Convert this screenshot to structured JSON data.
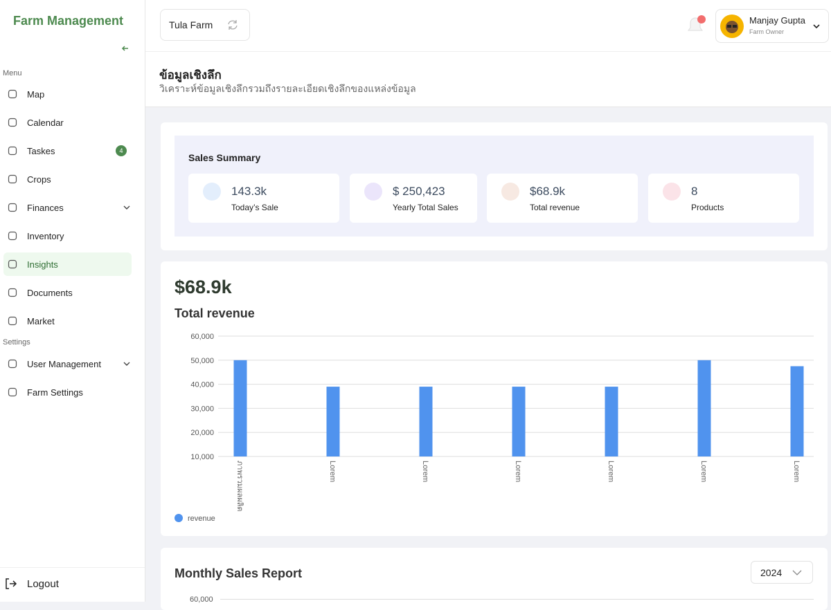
{
  "sidebar": {
    "brand": "Farm Management",
    "menu_label": "Menu",
    "menu": [
      {
        "label": "Map"
      },
      {
        "label": "Calendar"
      },
      {
        "label": "Taskes",
        "badge": "4"
      },
      {
        "label": "Crops"
      },
      {
        "label": "Finances"
      },
      {
        "label": "Inventory"
      },
      {
        "label": "Insights"
      },
      {
        "label": "Documents"
      },
      {
        "label": "Market"
      }
    ],
    "settings_label": "Settings",
    "settings": [
      {
        "label": "User Management"
      },
      {
        "label": "Farm Settings"
      }
    ],
    "logout": "Logout"
  },
  "header": {
    "farm": "Tula Farm",
    "user_name": "Manjay Gupta",
    "user_role": "Farm Owner"
  },
  "page": {
    "title": "ข้อมูลเชิงลึก",
    "subtitle": "วิเคราะห์ข้อมูลเชิงลึกรวมถึงรายละเอียดเชิงลึกของแหล่งข้อมูล"
  },
  "summary": {
    "title": "Sales Summary",
    "cards": [
      {
        "value": "143.3k",
        "label": "Today’s Sale"
      },
      {
        "value": "$ 250,423",
        "label": "Yearly Total Sales"
      },
      {
        "value": "$68.9k",
        "label": "Total revenue"
      },
      {
        "value": "8",
        "label": "Products"
      }
    ]
  },
  "revenue": {
    "headline": "$68.9k",
    "title": "Total revenue"
  },
  "chart_data": {
    "type": "bar",
    "categories": [
      "ภาพรวมผลผลิต",
      "Lorem",
      "Lorem",
      "Lorem",
      "Lorem",
      "Lorem",
      "Lorem"
    ],
    "series": [
      {
        "name": "revenue",
        "color": "#5093ee",
        "values": [
          50000,
          39000,
          39000,
          39000,
          39000,
          50000,
          47500
        ]
      }
    ],
    "ylim": [
      10000,
      60000
    ],
    "yticks": [
      {
        "value": 10000,
        "label": "10,000"
      },
      {
        "value": 20000,
        "label": "20,000"
      },
      {
        "value": 30000,
        "label": "30,000"
      },
      {
        "value": 40000,
        "label": "40,000"
      },
      {
        "value": 50000,
        "label": "50,000"
      },
      {
        "value": 60000,
        "label": "60,000"
      }
    ],
    "grid": true,
    "legend": "bottom-left"
  },
  "monthly": {
    "title": "Monthly Sales Report",
    "year": "2024",
    "top_tick": "60,000"
  }
}
